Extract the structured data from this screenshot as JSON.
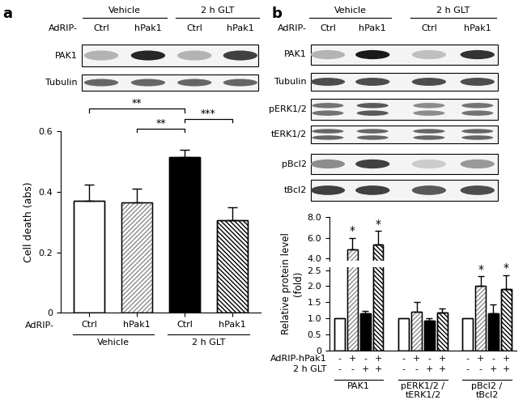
{
  "panel_labels": [
    "a",
    "b"
  ],
  "blots": [
    {
      "groups": [
        "Vehicle",
        "2 h GLT"
      ],
      "row_label": "AdRIP-",
      "lanes": [
        "Ctrl",
        "hPak1",
        "Ctrl",
        "hPak1"
      ],
      "rows": [
        "PAK1",
        "Tubulin"
      ]
    },
    {
      "groups": [
        "Vehicle",
        "2 h GLT"
      ],
      "row_label": "AdRIP-",
      "lanes": [
        "Ctrl",
        "hPak1",
        "Ctrl",
        "hPak1"
      ],
      "rows": [
        "PAK1",
        "Tubulin",
        "pERK1/2",
        "tERK1/2",
        "pBcl2",
        "tBcl2"
      ]
    }
  ],
  "chart_data": [
    {
      "type": "bar",
      "ylabel": "Cell death (abs)",
      "categories": [
        "Ctrl",
        "hPak1",
        "Ctrl",
        "hPak1"
      ],
      "category_row_label": "AdRIP-",
      "groups": [
        "Vehicle",
        "2 h GLT"
      ],
      "values": [
        0.37,
        0.365,
        0.515,
        0.305
      ],
      "errors": [
        0.055,
        0.045,
        0.025,
        0.045
      ],
      "colors": [
        "#ffffff",
        "#ffffff",
        "#000000",
        "#ffffff"
      ],
      "ylim": [
        0,
        0.6
      ],
      "yticks": [
        0,
        0.2,
        0.4,
        0.6
      ],
      "annotations": [
        {
          "from": 0,
          "to": 2,
          "text": "**"
        },
        {
          "from": 1,
          "to": 2,
          "text": "**"
        },
        {
          "from": 2,
          "to": 3,
          "text": "***"
        }
      ]
    },
    {
      "type": "bar",
      "ylabel": "Relative protein level\n(fold)",
      "groups": [
        "PAK1",
        "pERK1/2 /\ntERK1/2",
        "pBcl2 /\ntBcl2"
      ],
      "values": [
        [
          1,
          4.9,
          1.15,
          5.35
        ],
        [
          1,
          1.2,
          0.93,
          1.17
        ],
        [
          1,
          2.02,
          1.15,
          1.9
        ]
      ],
      "errors": [
        [
          null,
          1.1,
          0.08,
          1.3
        ],
        [
          null,
          0.3,
          0.08,
          0.12
        ],
        [
          null,
          0.28,
          0.27,
          0.45
        ]
      ],
      "colors": [
        "#ffffff",
        "#ffffff",
        "#000000",
        "#ffffff"
      ],
      "conditions": [
        {
          "label": "AdRIP-hPak1",
          "values": [
            "-",
            "+",
            "-",
            "+"
          ]
        },
        {
          "label": "2 h GLT",
          "values": [
            "-",
            "-",
            "+",
            "+"
          ]
        }
      ],
      "annotations": [
        {
          "group": 0,
          "index": 1,
          "text": "*"
        },
        {
          "group": 0,
          "index": 3,
          "text": "*"
        },
        {
          "group": 2,
          "index": 1,
          "text": "*"
        },
        {
          "group": 2,
          "index": 3,
          "text": "*"
        }
      ],
      "ylim": [
        [
          0,
          2.6
        ],
        [
          3.8,
          8.0
        ]
      ],
      "yticks": [
        [
          0,
          0.5,
          {
            "value": 1,
            "label": "1.0"
          },
          1.5,
          {
            "value": 2,
            "label": "2.0"
          },
          2.5
        ],
        [
          {
            "value": 4,
            "label": "4.0"
          },
          {
            "value": 6,
            "label": "6.0"
          },
          {
            "value": 8,
            "label": "8.0"
          }
        ]
      ]
    }
  ]
}
